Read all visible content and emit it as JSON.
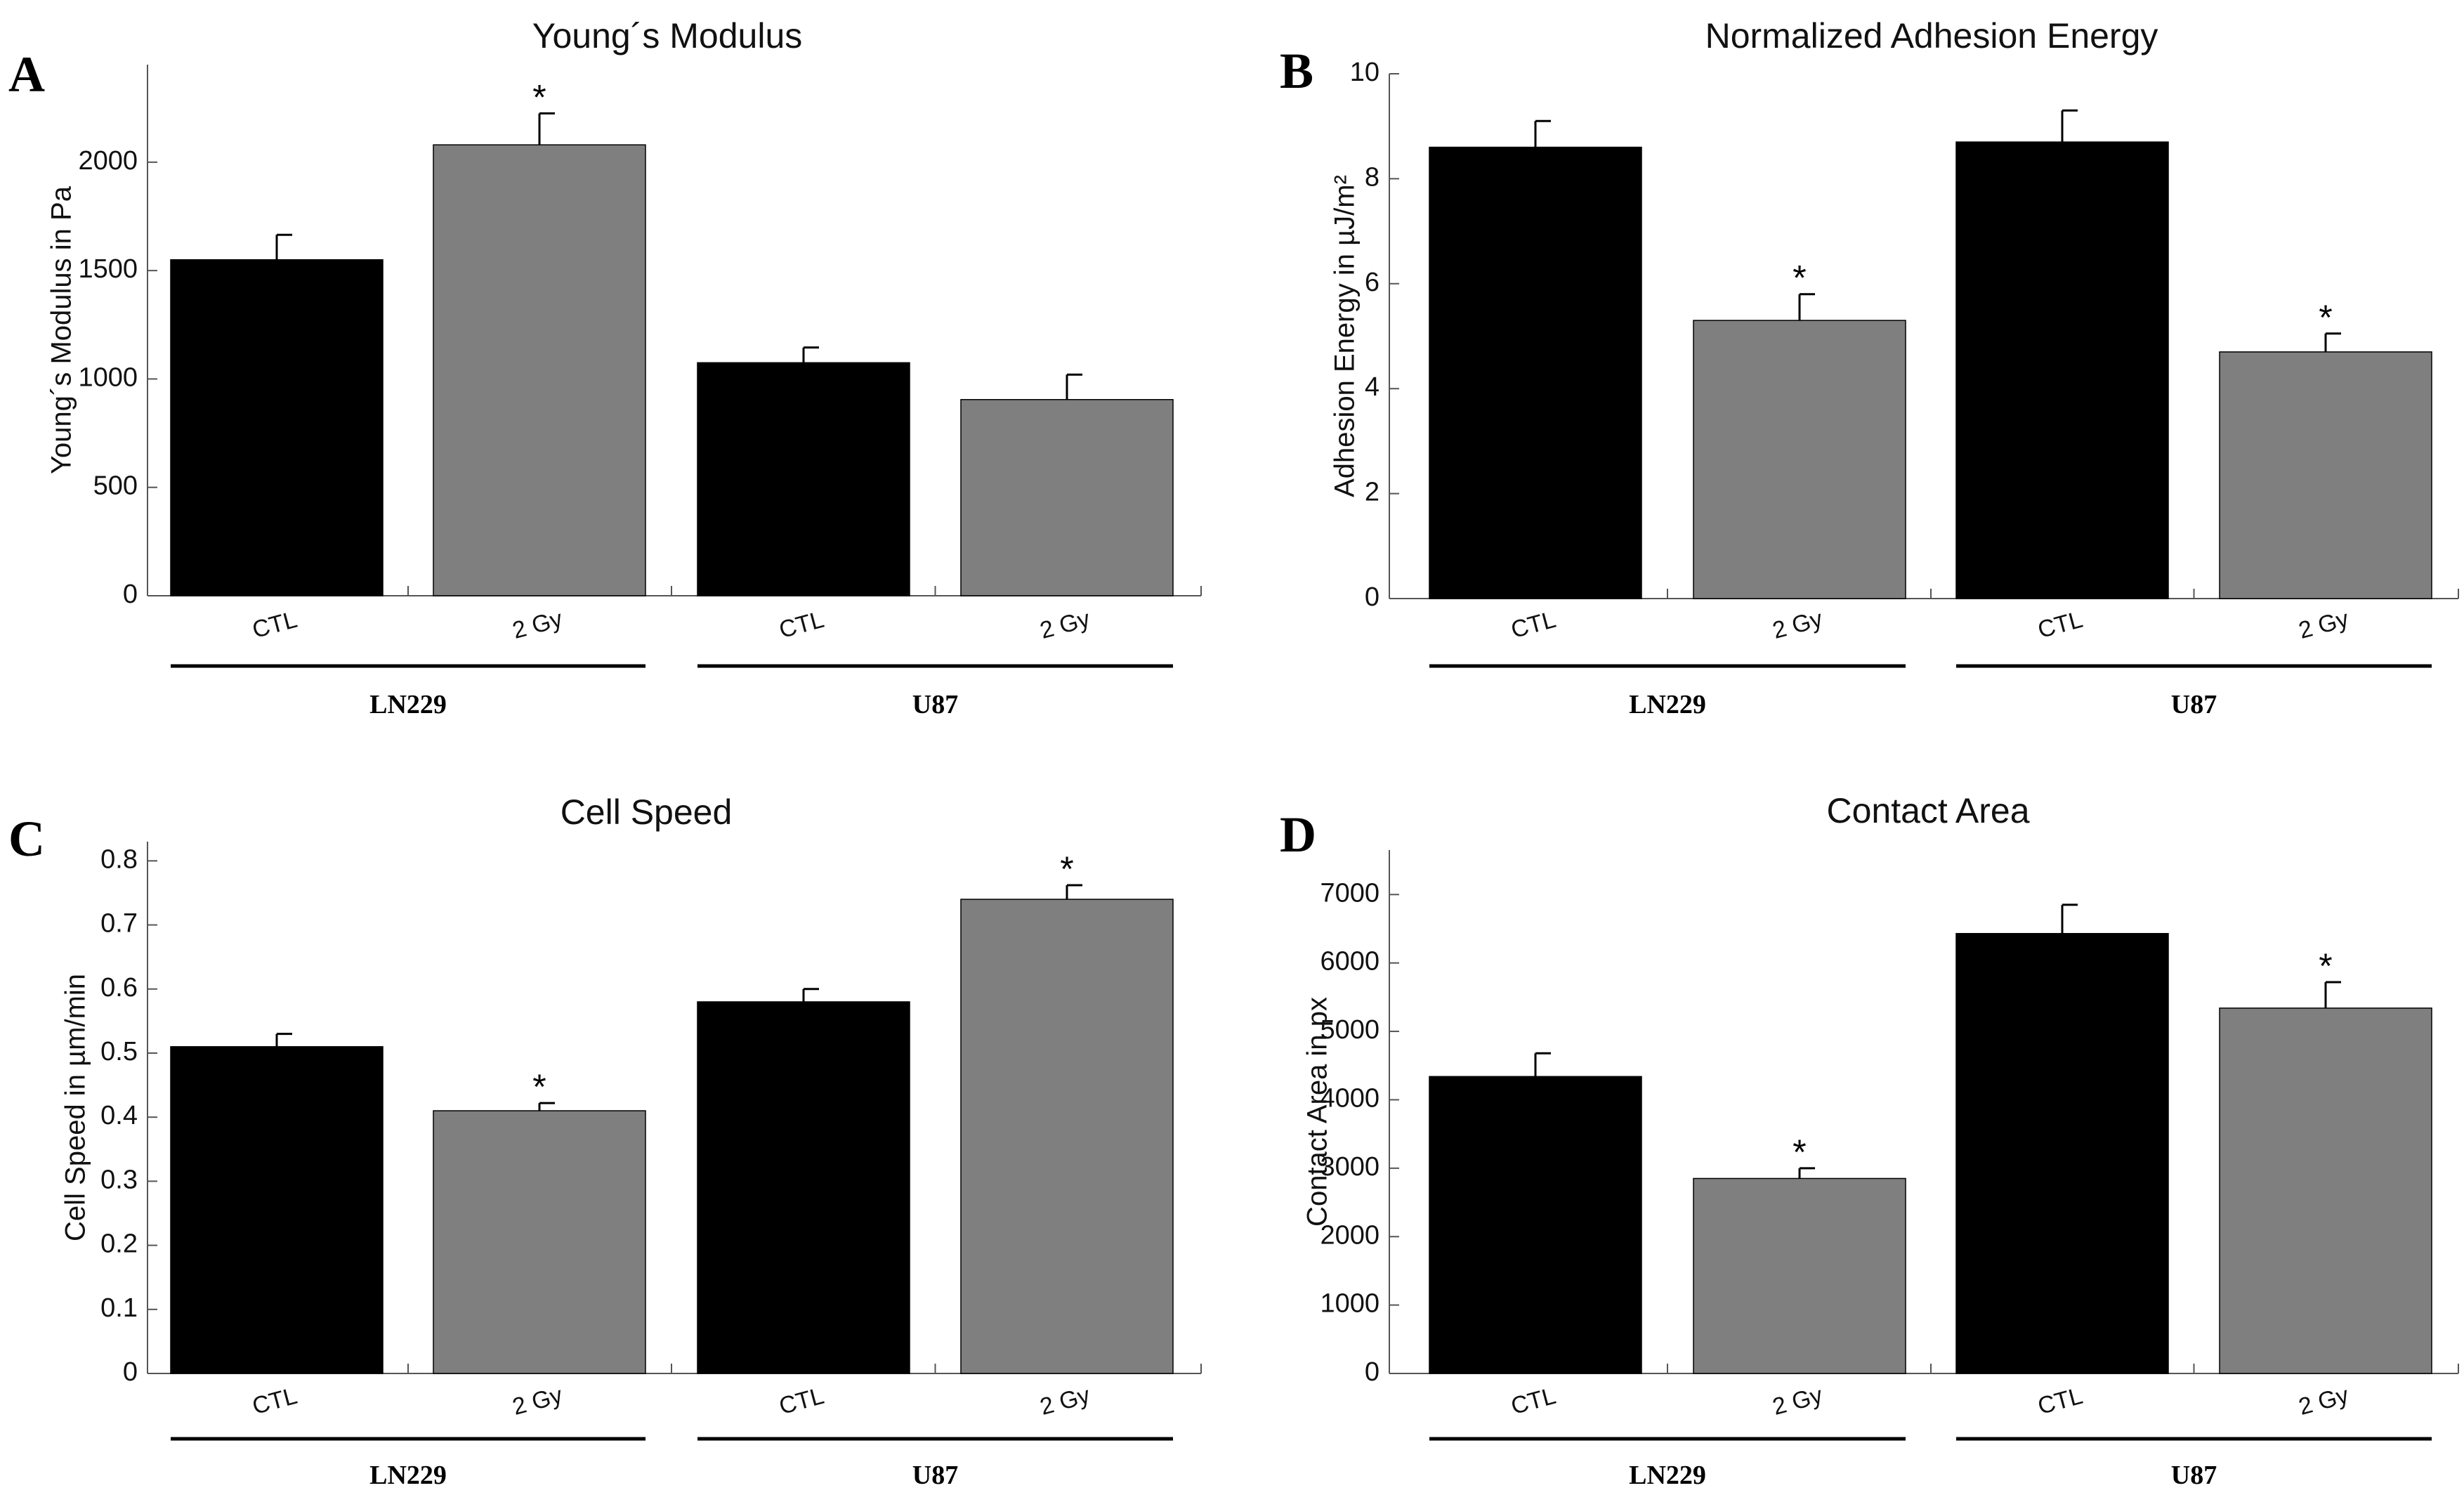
{
  "colors": {
    "ctl": "#000000",
    "irradiated": "#7f7f7f"
  },
  "chart_data": [
    {
      "type": "bar",
      "panel": "A",
      "title": "Young´s Modulus",
      "xlabel": "",
      "ylabel": "Young´s Modulus in Pa",
      "categories": [
        "CTL",
        "2 Gy",
        "CTL",
        "2 Gy"
      ],
      "groups": [
        {
          "label": "LN229",
          "start": 0,
          "end": 1
        },
        {
          "label": "U87",
          "start": 2,
          "end": 3
        }
      ],
      "values": [
        1550,
        2080,
        1075,
        905
      ],
      "errors": [
        115,
        145,
        70,
        115
      ],
      "significant": [
        false,
        true,
        false,
        false
      ],
      "significance_marker": "*",
      "ylim": [
        0,
        2450
      ],
      "yticks": [
        0,
        500,
        1000,
        1500,
        2000
      ],
      "yticklabels": [
        "0",
        "500",
        "1000",
        "1500",
        "2000"
      ]
    },
    {
      "type": "bar",
      "panel": "B",
      "title": "Normalized Adhesion Energy",
      "xlabel": "",
      "ylabel": "Adhesion Energy in µJ/m²",
      "categories": [
        "CTL",
        "2 Gy",
        "CTL",
        "2 Gy"
      ],
      "groups": [
        {
          "label": "LN229",
          "start": 0,
          "end": 1
        },
        {
          "label": "U87",
          "start": 2,
          "end": 3
        }
      ],
      "values": [
        8.6,
        5.3,
        8.7,
        4.7
      ],
      "errors": [
        0.5,
        0.5,
        0.6,
        0.35
      ],
      "significant": [
        false,
        true,
        false,
        true
      ],
      "significance_marker": "*",
      "ylim": [
        0,
        10
      ],
      "yticks": [
        0,
        2,
        4,
        6,
        8,
        10
      ],
      "yticklabels": [
        "0",
        "2",
        "4",
        "6",
        "8",
        "10"
      ]
    },
    {
      "type": "bar",
      "panel": "C",
      "title": "Cell Speed",
      "xlabel": "",
      "ylabel": "Cell Speed in µm/min",
      "categories": [
        "CTL",
        "2 Gy",
        "CTL",
        "2 Gy"
      ],
      "groups": [
        {
          "label": "LN229",
          "start": 0,
          "end": 1
        },
        {
          "label": "U87",
          "start": 2,
          "end": 3
        }
      ],
      "values": [
        0.51,
        0.41,
        0.58,
        0.74
      ],
      "errors": [
        0.02,
        0.012,
        0.02,
        0.022
      ],
      "significant": [
        false,
        true,
        false,
        true
      ],
      "significance_marker": "*",
      "ylim": [
        0,
        0.83
      ],
      "yticks": [
        0,
        0.1,
        0.2,
        0.3,
        0.4,
        0.5,
        0.6,
        0.7,
        0.8
      ],
      "yticklabels": [
        "0",
        "0.1",
        "0.2",
        "0.3",
        "0.4",
        "0.5",
        "0.6",
        "0.7",
        "0.8"
      ]
    },
    {
      "type": "bar",
      "panel": "D",
      "title": "Contact Area",
      "xlabel": "",
      "ylabel": "Contact Area in px",
      "categories": [
        "CTL",
        "2 Gy",
        "CTL",
        "2 Gy"
      ],
      "groups": [
        {
          "label": "LN229",
          "start": 0,
          "end": 1
        },
        {
          "label": "U87",
          "start": 2,
          "end": 3
        }
      ],
      "values": [
        4340,
        2850,
        6430,
        5340
      ],
      "errors": [
        340,
        150,
        420,
        380
      ],
      "significant": [
        false,
        true,
        false,
        true
      ],
      "significance_marker": "*",
      "ylim": [
        0,
        7650
      ],
      "yticks": [
        0,
        1000,
        2000,
        3000,
        4000,
        5000,
        6000,
        7000
      ],
      "yticklabels": [
        "0",
        "1000",
        "2000",
        "3000",
        "4000",
        "5000",
        "6000",
        "7000"
      ]
    }
  ]
}
